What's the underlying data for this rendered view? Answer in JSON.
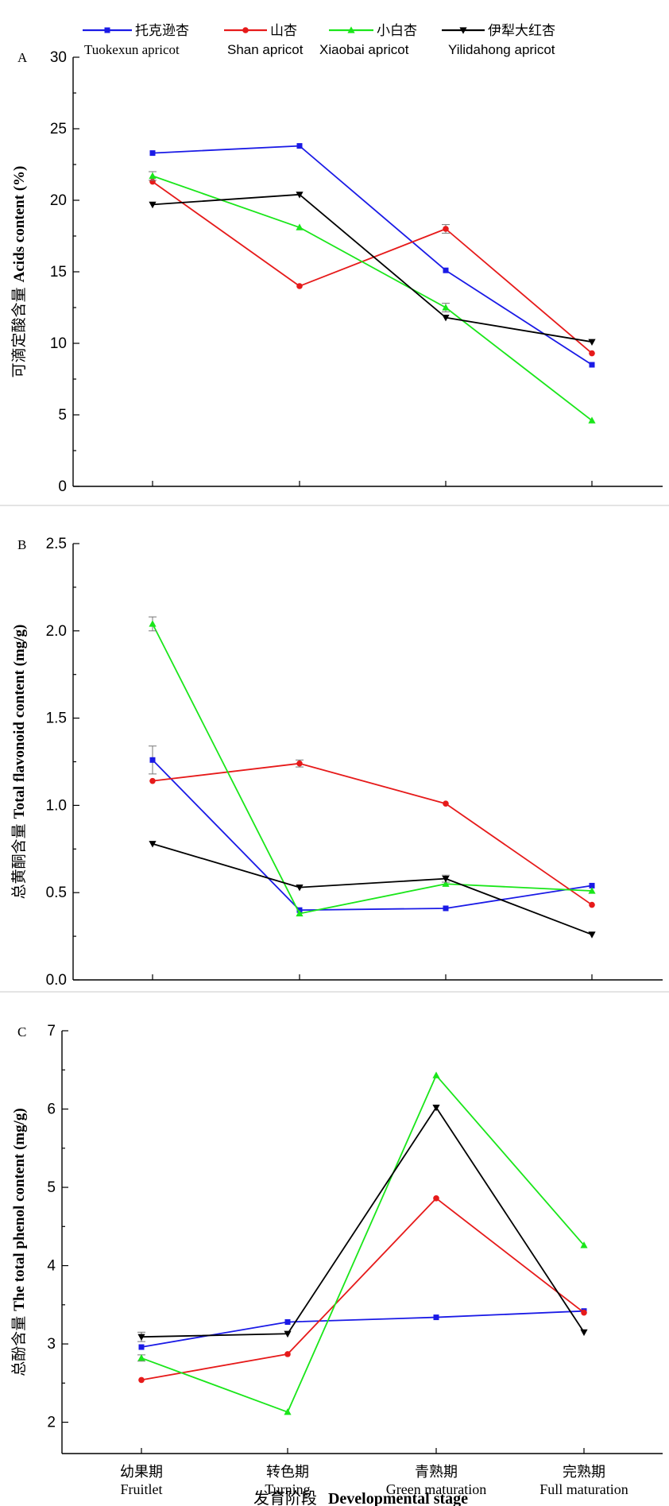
{
  "colors": {
    "Tuokexun": "#1a1ae6",
    "Shan": "#e61a1a",
    "Xiaobai": "#1ae61a",
    "Yilidahong": "#000000"
  },
  "legend": [
    {
      "key": "Tuokexun",
      "cn": "托克逊杏",
      "en": "Tuokexun apricot",
      "marker": "square"
    },
    {
      "key": "Shan",
      "cn": "山杏",
      "en": "Shan apricot",
      "marker": "circle"
    },
    {
      "key": "Xiaobai",
      "cn": "小白杏",
      "en": "Xiaobai apricot",
      "marker": "triangle-up"
    },
    {
      "key": "Yilidahong",
      "cn": "伊犁大红杏",
      "en": "Yilidahong apricot",
      "marker": "triangle-down"
    }
  ],
  "x_axis": {
    "categories_cn": [
      "幼果期",
      "转色期",
      "青熟期",
      "完熟期"
    ],
    "categories_en": [
      "Fruitlet",
      "Turning",
      "Green maturation",
      "Full maturation"
    ],
    "label_cn": "发育阶段",
    "label_en": "Developmental stage"
  },
  "chart_data": [
    {
      "type": "line",
      "panel": "A",
      "ylabel_cn": "可滴定酸含量",
      "ylabel_en": "Acids content (%)",
      "ylim": [
        0,
        30
      ],
      "yticks": [
        "0",
        "5",
        "10",
        "15",
        "20",
        "25",
        "30"
      ],
      "categories": [
        "Fruitlet",
        "Turning",
        "Green maturation",
        "Full maturation"
      ],
      "series": [
        {
          "name": "Tuokexun apricot",
          "key": "Tuokexun",
          "values": [
            23.3,
            23.8,
            15.1,
            8.5
          ],
          "err": [
            0,
            0,
            0,
            0
          ]
        },
        {
          "name": "Shan apricot",
          "key": "Shan",
          "values": [
            21.3,
            14.0,
            18.0,
            9.3
          ],
          "err": [
            0,
            0,
            0.3,
            0
          ]
        },
        {
          "name": "Xiaobai apricot",
          "key": "Xiaobai",
          "values": [
            21.7,
            18.1,
            12.5,
            4.6
          ],
          "err": [
            0.3,
            0,
            0.3,
            0
          ]
        },
        {
          "name": "Yilidahong apricot",
          "key": "Yilidahong",
          "values": [
            19.7,
            20.4,
            11.8,
            10.1
          ],
          "err": [
            0,
            0,
            0,
            0
          ]
        }
      ]
    },
    {
      "type": "line",
      "panel": "B",
      "ylabel_cn": "总黄酮含量",
      "ylabel_en": "Total flavonoid content (mg/g)",
      "ylim": [
        0,
        2.5
      ],
      "yticks": [
        "0.0",
        "0.5",
        "1.0",
        "1.5",
        "2.0",
        "2.5"
      ],
      "categories": [
        "Fruitlet",
        "Turning",
        "Green maturation",
        "Full maturation"
      ],
      "series": [
        {
          "name": "Tuokexun apricot",
          "key": "Tuokexun",
          "values": [
            1.26,
            0.4,
            0.41,
            0.54
          ],
          "err": [
            0.08,
            0,
            0,
            0
          ]
        },
        {
          "name": "Shan apricot",
          "key": "Shan",
          "values": [
            1.14,
            1.24,
            1.01,
            0.43
          ],
          "err": [
            0,
            0.02,
            0,
            0
          ]
        },
        {
          "name": "Xiaobai apricot",
          "key": "Xiaobai",
          "values": [
            2.04,
            0.38,
            0.55,
            0.51
          ],
          "err": [
            0.04,
            0,
            0,
            0
          ]
        },
        {
          "name": "Yilidahong apricot",
          "key": "Yilidahong",
          "values": [
            0.78,
            0.53,
            0.58,
            0.26
          ],
          "err": [
            0,
            0,
            0.02,
            0
          ]
        }
      ]
    },
    {
      "type": "line",
      "panel": "C",
      "ylabel_cn": "总酚含量",
      "ylabel_en": "The total phenol content (mg/g)",
      "ylim": [
        1.6,
        7
      ],
      "yticks": [
        "2",
        "3",
        "4",
        "5",
        "6",
        "7"
      ],
      "categories": [
        "Fruitlet",
        "Turning",
        "Green maturation",
        "Full maturation"
      ],
      "series": [
        {
          "name": "Tuokexun apricot",
          "key": "Tuokexun",
          "values": [
            2.96,
            3.28,
            3.34,
            3.42
          ],
          "err": [
            0,
            0,
            0,
            0
          ]
        },
        {
          "name": "Shan apricot",
          "key": "Shan",
          "values": [
            2.54,
            2.87,
            4.86,
            3.4
          ],
          "err": [
            0,
            0,
            0,
            0
          ]
        },
        {
          "name": "Xiaobai apricot",
          "key": "Xiaobai",
          "values": [
            2.82,
            2.13,
            6.43,
            4.26
          ],
          "err": [
            0.04,
            0,
            0,
            0
          ]
        },
        {
          "name": "Yilidahong apricot",
          "key": "Yilidahong",
          "values": [
            3.09,
            3.13,
            6.02,
            3.15
          ],
          "err": [
            0.06,
            0,
            0,
            0
          ]
        }
      ]
    }
  ]
}
